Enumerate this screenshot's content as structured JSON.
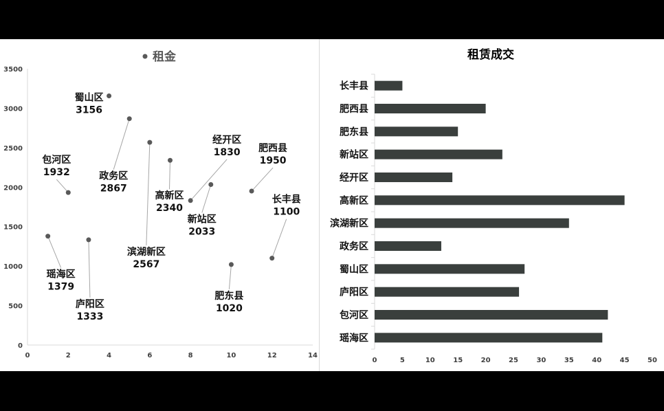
{
  "charts": [
    {
      "type": "scatter",
      "title": "租金",
      "colors": {
        "marker": "#595959",
        "leader": "#a6a6a6",
        "axis": "#d9d9d9",
        "title": "#595959"
      },
      "x_ticks": [
        "0",
        "2",
        "4",
        "6",
        "8",
        "10",
        "12",
        "14"
      ],
      "y_ticks": [
        "0",
        "500",
        "1000",
        "1500",
        "2000",
        "2500",
        "3000",
        "3500"
      ],
      "xlim": [
        0,
        14
      ],
      "ylim": [
        0,
        3500
      ],
      "points": [
        {
          "x": 1,
          "y": 1379,
          "name": "瑶海区",
          "value": "1379"
        },
        {
          "x": 2,
          "y": 1932,
          "name": "包河区",
          "value": "1932"
        },
        {
          "x": 3,
          "y": 1333,
          "name": "庐阳区",
          "value": "1333"
        },
        {
          "x": 4,
          "y": 3156,
          "name": "蜀山区",
          "value": "3156"
        },
        {
          "x": 5,
          "y": 2867,
          "name": "政务区",
          "value": "2867"
        },
        {
          "x": 6,
          "y": 2567,
          "name": "滨湖新区",
          "value": "2567"
        },
        {
          "x": 7,
          "y": 2340,
          "name": "高新区",
          "value": "2340"
        },
        {
          "x": 8,
          "y": 1830,
          "name": "经开区",
          "value": "1830"
        },
        {
          "x": 9,
          "y": 2033,
          "name": "新站区",
          "value": "2033"
        },
        {
          "x": 10,
          "y": 1020,
          "name": "肥东县",
          "value": "1020"
        },
        {
          "x": 11,
          "y": 1950,
          "name": "肥西县",
          "value": "1950"
        },
        {
          "x": 12,
          "y": 1100,
          "name": "长丰县",
          "value": "1100"
        }
      ],
      "legend": "top, left of title, marker only"
    },
    {
      "type": "bar",
      "orientation": "horizontal",
      "title": "租赁成交",
      "colors": {
        "bar": "#3a3f3d",
        "axis": "#d9d9d9",
        "title": "#111111"
      },
      "categories": [
        "长丰县",
        "肥西县",
        "肥东县",
        "新站区",
        "经开区",
        "高新区",
        "滨湖新区",
        "政务区",
        "蜀山区",
        "庐阳区",
        "包河区",
        "瑶海区"
      ],
      "values": [
        5,
        20,
        15,
        23,
        14,
        45,
        35,
        12,
        27,
        26,
        42,
        41
      ],
      "x_ticks": [
        "0",
        "5",
        "10",
        "15",
        "20",
        "25",
        "30",
        "35",
        "40",
        "45",
        "50"
      ],
      "xlim": [
        0,
        50
      ]
    }
  ]
}
